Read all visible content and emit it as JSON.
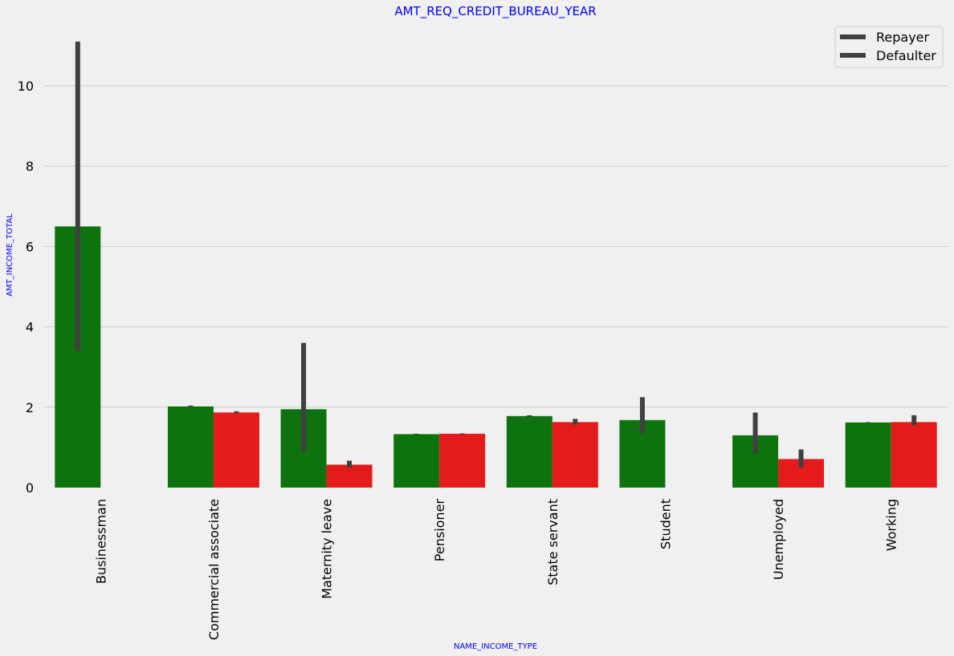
{
  "chart_data": {
    "type": "bar",
    "title": "AMT_REQ_CREDIT_BUREAU_YEAR",
    "xlabel": "NAME_INCOME_TYPE",
    "ylabel": "AMT_INCOME_TOTAL",
    "categories": [
      "Businessman",
      "Commercial associate",
      "Maternity leave",
      "Pensioner",
      "State servant",
      "Student",
      "Unemployed",
      "Working"
    ],
    "series": [
      {
        "name": "Repayer",
        "color": "#0e720e",
        "values": [
          6.5,
          2.02,
          1.95,
          1.33,
          1.78,
          1.68,
          1.3,
          1.62
        ],
        "error_low": [
          3.4,
          2.0,
          0.9,
          1.32,
          1.77,
          1.35,
          0.85,
          1.61
        ],
        "error_high": [
          11.1,
          2.04,
          3.6,
          1.34,
          1.8,
          2.25,
          1.87,
          1.63
        ]
      },
      {
        "name": "Defaulter",
        "color": "#e31b1b",
        "values": [
          null,
          1.87,
          0.57,
          1.34,
          1.63,
          null,
          0.71,
          1.63
        ],
        "error_low": [
          null,
          1.85,
          0.5,
          1.33,
          1.57,
          null,
          0.5,
          1.55
        ],
        "error_high": [
          null,
          1.9,
          0.67,
          1.35,
          1.71,
          null,
          0.95,
          1.8
        ]
      }
    ],
    "yticks": [
      0,
      2,
      4,
      6,
      8,
      10
    ],
    "ylim": [
      0,
      11.2
    ],
    "grid": "horizontal",
    "legend_position": "top-right",
    "error_bar_color": "#404040"
  }
}
